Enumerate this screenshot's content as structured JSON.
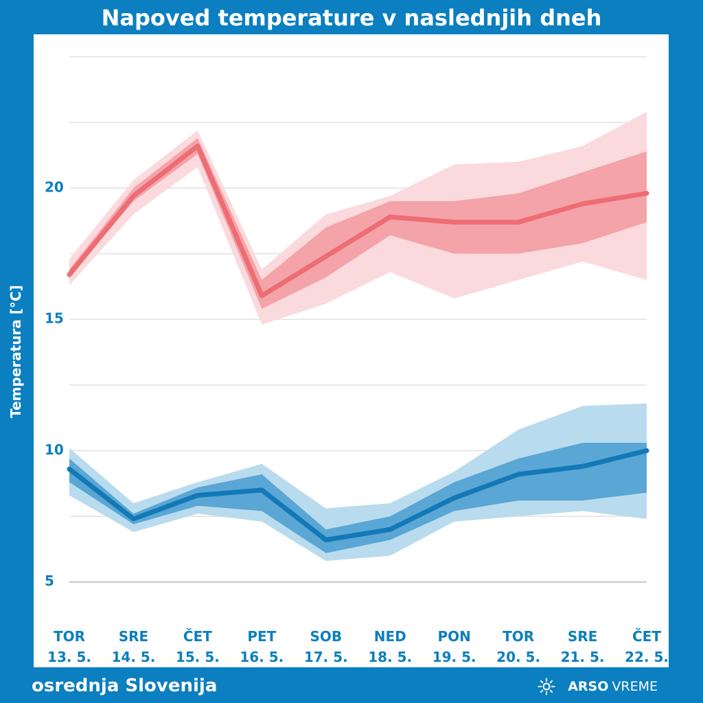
{
  "title": "Napoved temperature v naslednjih dneh",
  "region": "osrednja Slovenija",
  "brand": {
    "strong": "ARSO",
    "light": "VREME",
    "icon": "sun-icon"
  },
  "colors": {
    "background": "#0b7fbf",
    "max_line": "#ec6d73",
    "max_inner": "#f4a3a8",
    "max_outer": "#fadadd",
    "min_line": "#1379b6",
    "min_inner": "#5aa6d4",
    "min_outer": "#b9dbee",
    "axis_text": "#0b7fbf"
  },
  "chart_data": {
    "type": "line",
    "title": "Napoved temperature v naslednjih dneh",
    "ylabel": "Temperatura [°C]",
    "xlabel": "",
    "ylim": [
      4.6,
      25.2
    ],
    "yticks": [
      5,
      10,
      15,
      20
    ],
    "grid": true,
    "legend": "none",
    "categories": [
      {
        "day": "TOR",
        "date": "13. 5."
      },
      {
        "day": "SRE",
        "date": "14. 5."
      },
      {
        "day": "ČET",
        "date": "15. 5."
      },
      {
        "day": "PET",
        "date": "16. 5."
      },
      {
        "day": "SOB",
        "date": "17. 5."
      },
      {
        "day": "NED",
        "date": "18. 5."
      },
      {
        "day": "PON",
        "date": "19. 5."
      },
      {
        "day": "TOR",
        "date": "20. 5."
      },
      {
        "day": "SRE",
        "date": "21. 5."
      },
      {
        "day": "ČET",
        "date": "22. 5."
      }
    ],
    "series": [
      {
        "key": "max",
        "values": [
          16.7,
          19.7,
          21.6,
          15.9,
          17.4,
          18.9,
          18.7,
          18.7,
          19.4,
          19.8
        ],
        "inner": {
          "low": [
            16.6,
            19.5,
            21.3,
            15.4,
            16.6,
            18.2,
            17.5,
            17.5,
            17.9,
            18.7
          ],
          "high": [
            16.9,
            20.0,
            21.9,
            16.5,
            18.5,
            19.5,
            19.5,
            19.8,
            20.6,
            21.4
          ]
        },
        "outer": {
          "low": [
            16.3,
            19.0,
            20.8,
            14.8,
            15.6,
            16.8,
            15.8,
            16.5,
            17.2,
            16.5
          ],
          "high": [
            17.3,
            20.3,
            22.2,
            16.9,
            19.0,
            19.7,
            20.9,
            21.0,
            21.6,
            22.9
          ]
        }
      },
      {
        "key": "min",
        "values": [
          9.3,
          7.4,
          8.3,
          8.5,
          6.6,
          7.0,
          8.2,
          9.1,
          9.4,
          10.0
        ],
        "inner": {
          "low": [
            8.8,
            7.2,
            7.9,
            7.7,
            6.1,
            6.6,
            7.7,
            8.1,
            8.1,
            8.4
          ],
          "high": [
            9.7,
            7.6,
            8.6,
            9.1,
            7.0,
            7.5,
            8.8,
            9.7,
            10.3,
            10.3
          ]
        },
        "outer": {
          "low": [
            8.3,
            6.9,
            7.6,
            7.3,
            5.8,
            6.0,
            7.3,
            7.5,
            7.7,
            7.4
          ],
          "high": [
            10.1,
            8.0,
            8.8,
            9.5,
            7.8,
            8.0,
            9.2,
            10.8,
            11.7,
            11.8
          ]
        }
      }
    ]
  }
}
